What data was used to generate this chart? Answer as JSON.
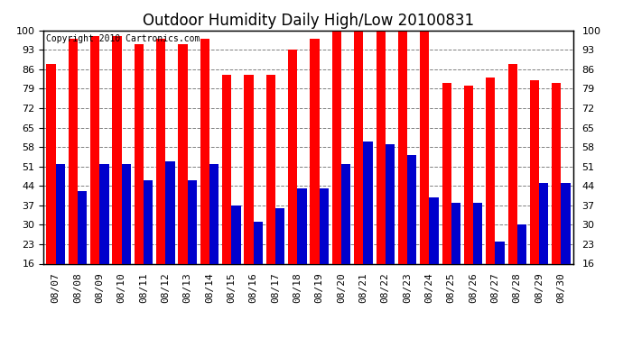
{
  "title": "Outdoor Humidity Daily High/Low 20100831",
  "copyright_text": "Copyright 2010 Cartronics.com",
  "dates": [
    "08/07",
    "08/08",
    "08/09",
    "08/10",
    "08/11",
    "08/12",
    "08/13",
    "08/14",
    "08/15",
    "08/16",
    "08/17",
    "08/18",
    "08/19",
    "08/20",
    "08/21",
    "08/22",
    "08/23",
    "08/24",
    "08/25",
    "08/26",
    "08/27",
    "08/28",
    "08/29",
    "08/30"
  ],
  "highs": [
    88,
    97,
    98,
    98,
    95,
    97,
    95,
    97,
    84,
    84,
    84,
    93,
    97,
    100,
    100,
    100,
    100,
    100,
    81,
    80,
    83,
    88,
    82,
    81
  ],
  "lows": [
    52,
    42,
    52,
    52,
    46,
    53,
    46,
    52,
    37,
    31,
    36,
    43,
    43,
    52,
    60,
    59,
    55,
    40,
    38,
    38,
    24,
    30,
    45,
    45
  ],
  "high_color": "#FF0000",
  "low_color": "#0000CC",
  "bg_color": "#FFFFFF",
  "grid_color": "#808080",
  "yticks": [
    16,
    23,
    30,
    37,
    44,
    51,
    58,
    65,
    72,
    79,
    86,
    93,
    100
  ],
  "ymin": 16,
  "ymax": 100,
  "bar_width": 0.42,
  "title_fontsize": 12,
  "tick_fontsize": 8,
  "copyright_fontsize": 7
}
